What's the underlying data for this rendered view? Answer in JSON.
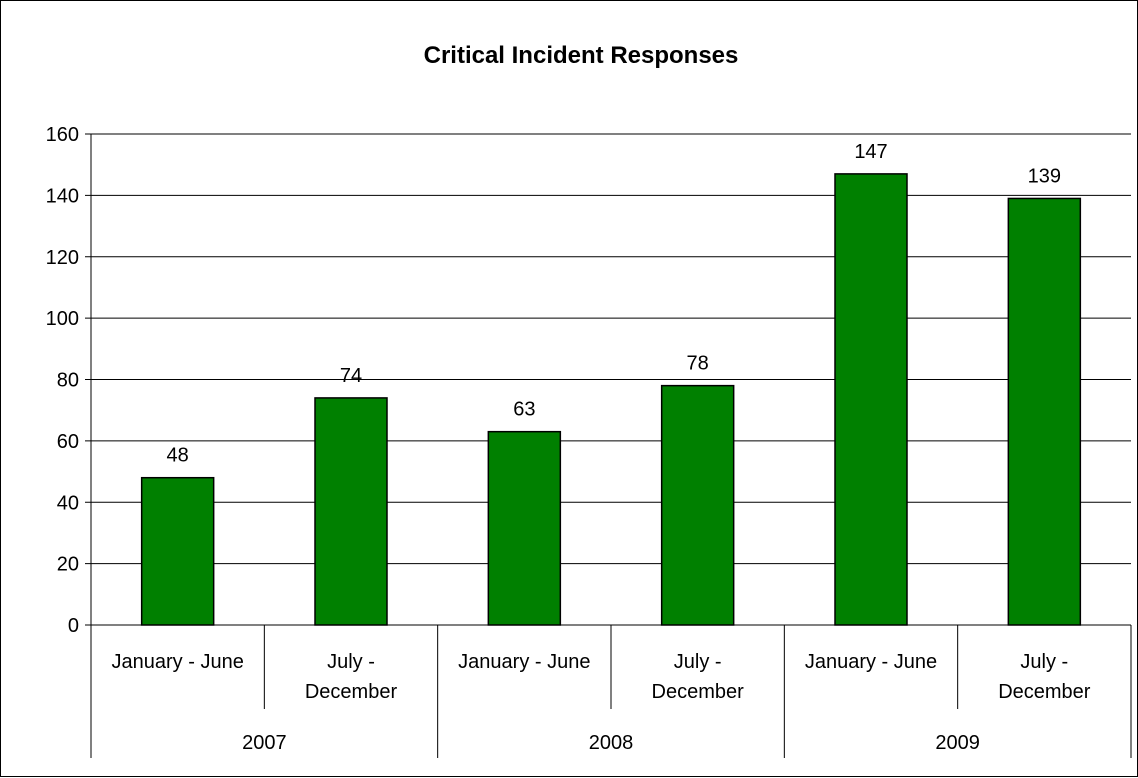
{
  "chart_data": {
    "type": "bar",
    "title": "Critical Incident Responses",
    "xlabel": "",
    "ylabel": "",
    "ylim": [
      0,
      160
    ],
    "yticks": [
      0,
      20,
      40,
      60,
      80,
      100,
      120,
      140,
      160
    ],
    "grid": true,
    "legend": "none",
    "categories": [
      [
        "January - June"
      ],
      [
        "July -",
        "December"
      ],
      [
        "January - June"
      ],
      [
        "July -",
        "December"
      ],
      [
        "January - June"
      ],
      [
        "July -",
        "December"
      ]
    ],
    "groups": [
      {
        "label": "2007",
        "span": 2
      },
      {
        "label": "2008",
        "span": 2
      },
      {
        "label": "2009",
        "span": 2
      }
    ],
    "values": [
      48,
      74,
      63,
      78,
      147,
      139
    ],
    "bar_color": "#008000"
  }
}
